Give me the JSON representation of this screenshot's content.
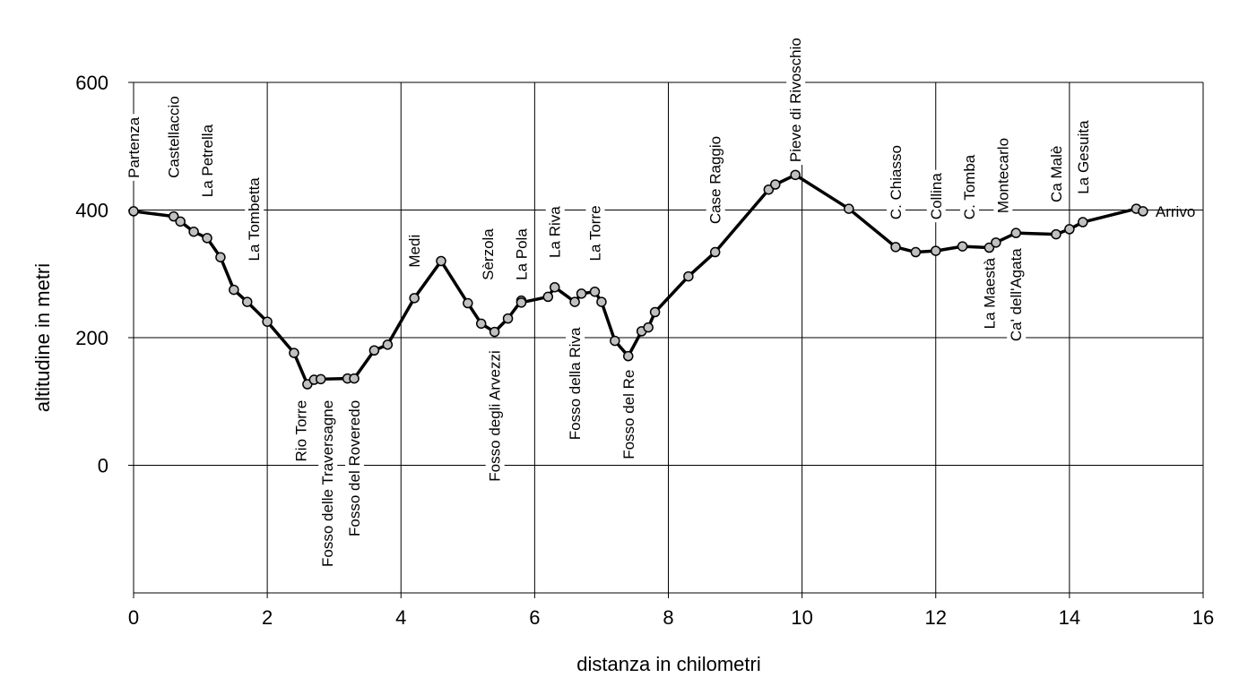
{
  "chart_data": {
    "type": "line",
    "xlabel": "distanza in chilometri",
    "ylabel": "altitudine  in metri",
    "xlim": [
      0,
      16
    ],
    "ylim": [
      -200,
      600
    ],
    "xticks": [
      0,
      2,
      4,
      6,
      8,
      10,
      12,
      14,
      16
    ],
    "yticks": [
      0,
      200,
      400,
      600
    ],
    "grid": true,
    "series": [
      {
        "color": "#000000",
        "marker_color": "#c0c0c0",
        "points": [
          [
            0.0,
            398
          ],
          [
            0.6,
            390
          ],
          [
            0.7,
            382
          ],
          [
            0.9,
            366
          ],
          [
            1.1,
            356
          ],
          [
            1.3,
            326
          ],
          [
            1.5,
            275
          ],
          [
            1.7,
            256
          ],
          [
            2.0,
            225
          ],
          [
            2.4,
            176
          ],
          [
            2.6,
            127
          ],
          [
            2.7,
            134
          ],
          [
            2.8,
            135
          ],
          [
            3.2,
            136
          ],
          [
            3.3,
            136
          ],
          [
            3.6,
            180
          ],
          [
            3.8,
            189
          ],
          [
            4.2,
            262
          ],
          [
            4.6,
            320
          ],
          [
            5.0,
            254
          ],
          [
            5.2,
            222
          ],
          [
            5.4,
            209
          ],
          [
            5.6,
            230
          ],
          [
            5.8,
            258
          ],
          [
            5.8,
            255
          ],
          [
            6.2,
            264
          ],
          [
            6.3,
            279
          ],
          [
            6.6,
            256
          ],
          [
            6.7,
            269
          ],
          [
            6.9,
            272
          ],
          [
            7.0,
            256
          ],
          [
            7.2,
            195
          ],
          [
            7.4,
            171
          ],
          [
            7.6,
            210
          ],
          [
            7.7,
            216
          ],
          [
            7.8,
            240
          ],
          [
            8.3,
            296
          ],
          [
            8.7,
            334
          ],
          [
            9.5,
            432
          ],
          [
            9.6,
            440
          ],
          [
            9.9,
            455
          ],
          [
            10.7,
            402
          ],
          [
            11.4,
            342
          ],
          [
            11.7,
            334
          ],
          [
            12.0,
            336
          ],
          [
            12.4,
            343
          ],
          [
            12.8,
            341
          ],
          [
            12.9,
            349
          ],
          [
            13.2,
            364
          ],
          [
            13.8,
            362
          ],
          [
            14.0,
            370
          ],
          [
            14.2,
            381
          ],
          [
            15.0,
            402
          ],
          [
            15.1,
            398
          ]
        ]
      }
    ],
    "annotations": [
      {
        "text": "Partenza",
        "x": 0.0,
        "y": 450,
        "anchor": "start"
      },
      {
        "text": "Castellaccio",
        "x": 0.6,
        "y": 450,
        "anchor": "start"
      },
      {
        "text": "La Petrella",
        "x": 1.1,
        "y": 420,
        "anchor": "start"
      },
      {
        "text": "La Tombetta",
        "x": 1.8,
        "y": 320,
        "anchor": "start"
      },
      {
        "text": "Rio Torre",
        "x": 2.5,
        "y": 102,
        "anchor": "end"
      },
      {
        "text": "Fosso delle Traversagne",
        "x": 2.9,
        "y": 102,
        "anchor": "end"
      },
      {
        "text": "Fosso del Roveredo",
        "x": 3.3,
        "y": 102,
        "anchor": "end"
      },
      {
        "text": "Medi",
        "x": 4.2,
        "y": 310,
        "anchor": "start"
      },
      {
        "text": "Sèrzola",
        "x": 5.3,
        "y": 290,
        "anchor": "start"
      },
      {
        "text": "La Pola",
        "x": 5.8,
        "y": 290,
        "anchor": "start"
      },
      {
        "text": "La Riva",
        "x": 6.3,
        "y": 325,
        "anchor": "start"
      },
      {
        "text": "La Torre",
        "x": 6.9,
        "y": 320,
        "anchor": "start"
      },
      {
        "text": "Fosso degli Arvezzi",
        "x": 5.4,
        "y": 180,
        "anchor": "end"
      },
      {
        "text": "Fosso della Riva",
        "x": 6.6,
        "y": 216,
        "anchor": "end"
      },
      {
        "text": "Fosso del Re",
        "x": 7.4,
        "y": 150,
        "anchor": "end"
      },
      {
        "text": "Case Raggio",
        "x": 8.7,
        "y": 378,
        "anchor": "start"
      },
      {
        "text": "Pieve di Rivoschio",
        "x": 9.9,
        "y": 475,
        "anchor": "start"
      },
      {
        "text": "C. Chiasso",
        "x": 11.4,
        "y": 385,
        "anchor": "start"
      },
      {
        "text": "Collina",
        "x": 12.0,
        "y": 385,
        "anchor": "start"
      },
      {
        "text": "C. Tomba",
        "x": 12.5,
        "y": 385,
        "anchor": "start"
      },
      {
        "text": "Montecarlo",
        "x": 13.0,
        "y": 395,
        "anchor": "start"
      },
      {
        "text": "Ca Malè",
        "x": 13.8,
        "y": 412,
        "anchor": "start"
      },
      {
        "text": "La Gesuita",
        "x": 14.2,
        "y": 425,
        "anchor": "start"
      },
      {
        "text": "La Maestà",
        "x": 12.8,
        "y": 325,
        "anchor": "end"
      },
      {
        "text": "Ca' dell'Agata",
        "x": 13.2,
        "y": 340,
        "anchor": "end"
      }
    ],
    "end_label": {
      "text": "Arrivo",
      "x": 15.1,
      "y": 398
    }
  }
}
